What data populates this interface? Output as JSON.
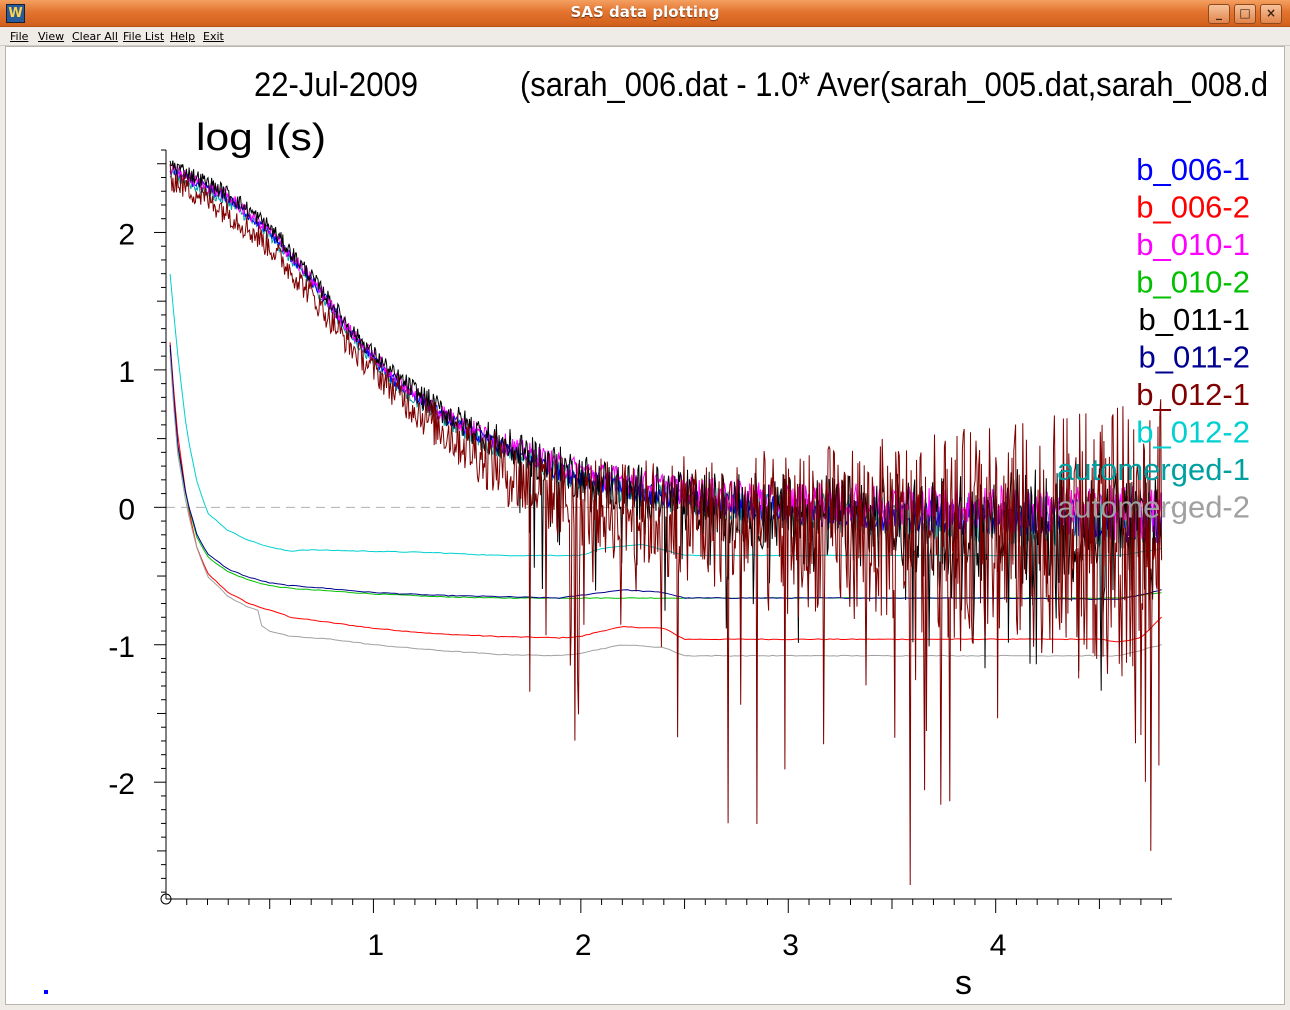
{
  "window": {
    "title": "SAS data plotting",
    "buttons": [
      "_",
      "□",
      "×"
    ]
  },
  "menu": [
    "File",
    "View",
    "Clear All",
    "File List",
    "Help",
    "Exit"
  ],
  "chart_data": {
    "type": "line",
    "date_label": "22-Jul-2009",
    "title": "(sarah_006.dat  -  1.0* Aver(sarah_005.dat,sarah_008.d",
    "xlabel": "s",
    "ylabel": "log  I(s)",
    "xlim": [
      0.0,
      4.85
    ],
    "ylim": [
      -2.85,
      2.6
    ],
    "x_ticks": [
      1,
      2,
      3,
      4
    ],
    "y_ticks": [
      2,
      1,
      0,
      -1,
      -2
    ],
    "zero_line": true,
    "legend_position": "top-right",
    "series": [
      {
        "name": "b_006-1",
        "color": "#0000ff",
        "kind": "noisy",
        "points": [
          [
            0.02,
            2.45
          ],
          [
            0.3,
            2.25
          ],
          [
            0.5,
            2.0
          ],
          [
            0.7,
            1.65
          ],
          [
            0.9,
            1.25
          ],
          [
            1.1,
            0.92
          ],
          [
            1.3,
            0.7
          ],
          [
            1.5,
            0.52
          ],
          [
            1.7,
            0.38
          ],
          [
            1.9,
            0.26
          ],
          [
            2.1,
            0.17
          ],
          [
            2.3,
            0.1
          ],
          [
            2.6,
            0.03
          ],
          [
            3.0,
            -0.03
          ],
          [
            3.4,
            -0.06
          ],
          [
            3.8,
            -0.08
          ],
          [
            4.2,
            -0.08
          ],
          [
            4.6,
            -0.1
          ],
          [
            4.8,
            -0.12
          ]
        ],
        "noise": 0.04,
        "noise_growth": 0.12
      },
      {
        "name": "b_006-2",
        "color": "#ff0000",
        "kind": "smooth",
        "points": [
          [
            0.02,
            1.2
          ],
          [
            0.05,
            0.6
          ],
          [
            0.1,
            0.05
          ],
          [
            0.15,
            -0.3
          ],
          [
            0.2,
            -0.48
          ],
          [
            0.3,
            -0.62
          ],
          [
            0.4,
            -0.7
          ],
          [
            0.5,
            -0.75
          ],
          [
            0.55,
            -0.77
          ],
          [
            0.6,
            -0.8
          ],
          [
            0.7,
            -0.82
          ],
          [
            1.0,
            -0.88
          ],
          [
            1.3,
            -0.92
          ],
          [
            1.6,
            -0.94
          ],
          [
            1.9,
            -0.95
          ],
          [
            2.0,
            -0.94
          ],
          [
            2.1,
            -0.9
          ],
          [
            2.2,
            -0.87
          ],
          [
            2.4,
            -0.88
          ],
          [
            2.5,
            -0.96
          ],
          [
            2.8,
            -0.96
          ],
          [
            3.5,
            -0.96
          ],
          [
            4.5,
            -0.96
          ],
          [
            4.6,
            -0.98
          ],
          [
            4.7,
            -0.95
          ],
          [
            4.8,
            -0.8
          ]
        ]
      },
      {
        "name": "b_010-1",
        "color": "#ff00ff",
        "kind": "noisy",
        "points": [
          [
            0.02,
            2.46
          ],
          [
            0.3,
            2.26
          ],
          [
            0.5,
            2.01
          ],
          [
            0.7,
            1.66
          ],
          [
            0.9,
            1.26
          ],
          [
            1.1,
            0.94
          ],
          [
            1.3,
            0.72
          ],
          [
            1.5,
            0.55
          ],
          [
            1.7,
            0.42
          ],
          [
            1.9,
            0.31
          ],
          [
            2.1,
            0.23
          ],
          [
            2.3,
            0.17
          ],
          [
            2.6,
            0.1
          ],
          [
            3.0,
            0.05
          ],
          [
            3.4,
            0.02
          ],
          [
            3.8,
            0.0
          ],
          [
            4.2,
            -0.02
          ],
          [
            4.6,
            -0.04
          ],
          [
            4.8,
            -0.06
          ]
        ],
        "noise": 0.05,
        "noise_growth": 0.16
      },
      {
        "name": "b_010-2",
        "color": "#00c000",
        "kind": "smooth",
        "points": [
          [
            0.02,
            1.15
          ],
          [
            0.05,
            0.5
          ],
          [
            0.1,
            0.05
          ],
          [
            0.15,
            -0.22
          ],
          [
            0.2,
            -0.36
          ],
          [
            0.3,
            -0.47
          ],
          [
            0.4,
            -0.53
          ],
          [
            0.5,
            -0.57
          ],
          [
            0.6,
            -0.59
          ],
          [
            0.7,
            -0.6
          ],
          [
            1.0,
            -0.63
          ],
          [
            1.3,
            -0.65
          ],
          [
            1.6,
            -0.66
          ],
          [
            2.0,
            -0.66
          ],
          [
            3.0,
            -0.66
          ],
          [
            4.0,
            -0.66
          ],
          [
            4.6,
            -0.66
          ],
          [
            4.8,
            -0.62
          ]
        ]
      },
      {
        "name": "b_011-1",
        "color": "#000000",
        "kind": "noisy",
        "points": [
          [
            0.02,
            2.5
          ],
          [
            0.3,
            2.28
          ],
          [
            0.5,
            2.04
          ],
          [
            0.7,
            1.68
          ],
          [
            0.9,
            1.28
          ],
          [
            1.1,
            0.96
          ],
          [
            1.3,
            0.73
          ],
          [
            1.5,
            0.55
          ],
          [
            1.7,
            0.4
          ],
          [
            1.9,
            0.28
          ],
          [
            2.1,
            0.17
          ],
          [
            2.3,
            0.1
          ],
          [
            2.6,
            0.02
          ],
          [
            3.0,
            -0.05
          ],
          [
            3.4,
            -0.1
          ],
          [
            3.8,
            -0.13
          ],
          [
            4.2,
            -0.15
          ],
          [
            4.6,
            -0.18
          ],
          [
            4.8,
            -0.2
          ]
        ],
        "noise": 0.06,
        "noise_growth": 0.45
      },
      {
        "name": "b_011-2",
        "color": "#000090",
        "kind": "smooth",
        "points": [
          [
            0.02,
            1.18
          ],
          [
            0.05,
            0.52
          ],
          [
            0.1,
            0.06
          ],
          [
            0.15,
            -0.2
          ],
          [
            0.2,
            -0.34
          ],
          [
            0.3,
            -0.45
          ],
          [
            0.4,
            -0.51
          ],
          [
            0.5,
            -0.55
          ],
          [
            0.6,
            -0.57
          ],
          [
            0.7,
            -0.58
          ],
          [
            1.0,
            -0.62
          ],
          [
            1.3,
            -0.64
          ],
          [
            1.6,
            -0.65
          ],
          [
            1.9,
            -0.66
          ],
          [
            2.0,
            -0.64
          ],
          [
            2.2,
            -0.6
          ],
          [
            2.4,
            -0.62
          ],
          [
            2.5,
            -0.66
          ],
          [
            3.0,
            -0.66
          ],
          [
            4.0,
            -0.66
          ],
          [
            4.6,
            -0.67
          ],
          [
            4.8,
            -0.6
          ]
        ]
      },
      {
        "name": "b_012-1",
        "color": "#800000",
        "kind": "noisy",
        "points": [
          [
            0.02,
            2.4
          ],
          [
            0.3,
            2.15
          ],
          [
            0.5,
            1.9
          ],
          [
            0.7,
            1.55
          ],
          [
            0.9,
            1.15
          ],
          [
            1.1,
            0.85
          ],
          [
            1.3,
            0.6
          ],
          [
            1.5,
            0.4
          ],
          [
            1.7,
            0.2
          ],
          [
            1.9,
            0.08
          ],
          [
            2.1,
            0.0
          ],
          [
            2.3,
            -0.05
          ],
          [
            2.6,
            -0.1
          ],
          [
            3.0,
            -0.15
          ],
          [
            3.4,
            -0.17
          ],
          [
            3.8,
            -0.2
          ],
          [
            4.2,
            -0.2
          ],
          [
            4.6,
            -0.22
          ],
          [
            4.8,
            -0.2
          ]
        ],
        "noise": 0.1,
        "noise_growth": 0.9
      },
      {
        "name": "b_012-2",
        "color": "#00d0d0",
        "kind": "smooth",
        "points": [
          [
            0.02,
            1.7
          ],
          [
            0.05,
            1.2
          ],
          [
            0.1,
            0.55
          ],
          [
            0.15,
            0.18
          ],
          [
            0.2,
            -0.04
          ],
          [
            0.3,
            -0.17
          ],
          [
            0.4,
            -0.24
          ],
          [
            0.5,
            -0.29
          ],
          [
            0.6,
            -0.32
          ],
          [
            0.65,
            -0.31
          ],
          [
            0.7,
            -0.31
          ],
          [
            1.0,
            -0.32
          ],
          [
            1.3,
            -0.33
          ],
          [
            1.6,
            -0.35
          ],
          [
            2.0,
            -0.35
          ],
          [
            2.1,
            -0.3
          ],
          [
            2.3,
            -0.27
          ],
          [
            2.5,
            -0.35
          ],
          [
            3.0,
            -0.35
          ],
          [
            4.0,
            -0.35
          ],
          [
            4.6,
            -0.35
          ],
          [
            4.8,
            -0.3
          ]
        ]
      },
      {
        "name": "automerged-1",
        "color": "#00a0a0",
        "kind": "noisy",
        "points": [
          [
            0.02,
            2.42
          ],
          [
            0.3,
            2.22
          ],
          [
            0.5,
            1.98
          ],
          [
            0.7,
            1.63
          ],
          [
            0.9,
            1.23
          ],
          [
            1.1,
            0.9
          ],
          [
            1.3,
            0.68
          ],
          [
            1.5,
            0.5
          ],
          [
            1.7,
            0.37
          ],
          [
            1.9,
            0.25
          ],
          [
            2.1,
            0.16
          ],
          [
            2.3,
            0.1
          ],
          [
            2.6,
            0.03
          ],
          [
            3.0,
            -0.02
          ],
          [
            3.4,
            -0.06
          ],
          [
            3.8,
            -0.08
          ],
          [
            4.2,
            -0.1
          ],
          [
            4.6,
            -0.12
          ],
          [
            4.8,
            -0.1
          ]
        ],
        "noise": 0.04,
        "noise_growth": 0.18
      },
      {
        "name": "automerged-2",
        "color": "#a0a0a0",
        "kind": "smooth",
        "points": [
          [
            0.02,
            1.1
          ],
          [
            0.05,
            0.45
          ],
          [
            0.1,
            0.0
          ],
          [
            0.15,
            -0.3
          ],
          [
            0.2,
            -0.5
          ],
          [
            0.3,
            -0.65
          ],
          [
            0.4,
            -0.73
          ],
          [
            0.45,
            -0.75
          ],
          [
            0.46,
            -0.86
          ],
          [
            0.5,
            -0.9
          ],
          [
            0.6,
            -0.94
          ],
          [
            0.8,
            -0.96
          ],
          [
            1.0,
            -1.0
          ],
          [
            1.3,
            -1.04
          ],
          [
            1.6,
            -1.07
          ],
          [
            1.9,
            -1.08
          ],
          [
            2.0,
            -1.06
          ],
          [
            2.2,
            -1.0
          ],
          [
            2.4,
            -1.02
          ],
          [
            2.5,
            -1.08
          ],
          [
            3.0,
            -1.08
          ],
          [
            4.0,
            -1.08
          ],
          [
            4.6,
            -1.08
          ],
          [
            4.8,
            -1.0
          ]
        ]
      }
    ]
  }
}
